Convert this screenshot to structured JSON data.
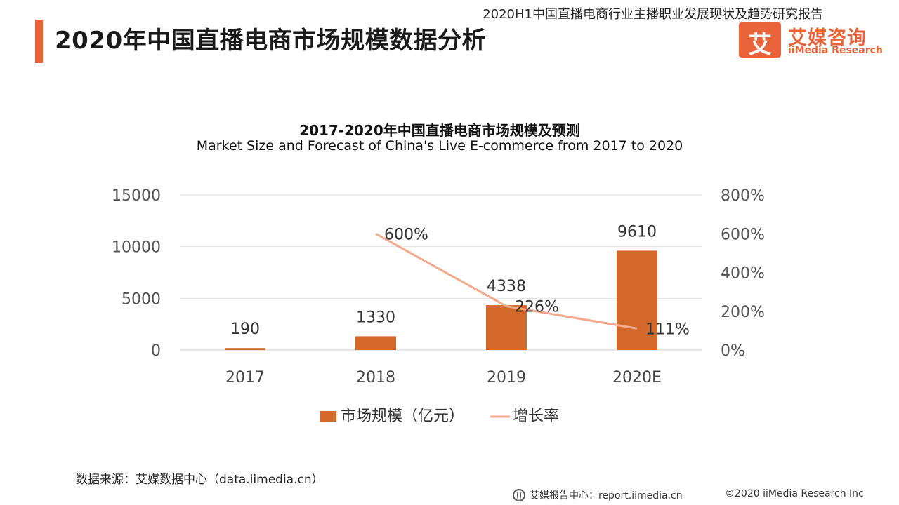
{
  "header": {
    "report_name": "2020H1中国直播电商行业主播职业发展现状及趋势研究报告",
    "page_title": "2020年中国直播电商市场规模数据分析"
  },
  "logo": {
    "mark": "艾",
    "name_cn": "艾媒咨询",
    "name_en": "iiMedia Research"
  },
  "colors": {
    "accent": "#e8623a",
    "bar": "#d2692b",
    "line": "#f2a98c"
  },
  "chart_data": {
    "type": "bar",
    "title": "2017-2020年中国直播电商市场规模及预测",
    "subtitle": "Market Size and Forecast of China's Live E-commerce from 2017 to 2020",
    "categories": [
      "2017",
      "2018",
      "2019",
      "2020E"
    ],
    "series": [
      {
        "name": "市场规模（亿元）",
        "type": "bar",
        "axis": "left",
        "values": [
          190,
          1330,
          4338,
          9610
        ],
        "labels": [
          "190",
          "1330",
          "4338",
          "9610"
        ]
      },
      {
        "name": "增长率",
        "type": "line",
        "axis": "right",
        "values": [
          null,
          600,
          226,
          111
        ],
        "labels": [
          "",
          "600%",
          "226%",
          "111%"
        ]
      }
    ],
    "y_left": {
      "min": 0,
      "max": 15000,
      "ticks": [
        "0",
        "5000",
        "10000",
        "15000"
      ]
    },
    "y_right": {
      "min": 0,
      "max": 800,
      "ticks": [
        "0%",
        "200%",
        "400%",
        "600%",
        "800%"
      ]
    },
    "grid": true,
    "legend": "bottom"
  },
  "footer": {
    "source": "数据来源：艾媒数据中心（data.iimedia.cn）",
    "report_center": "艾媒报告中心：report.iimedia.cn",
    "copyright": "©2020  iiMedia Research  Inc"
  }
}
